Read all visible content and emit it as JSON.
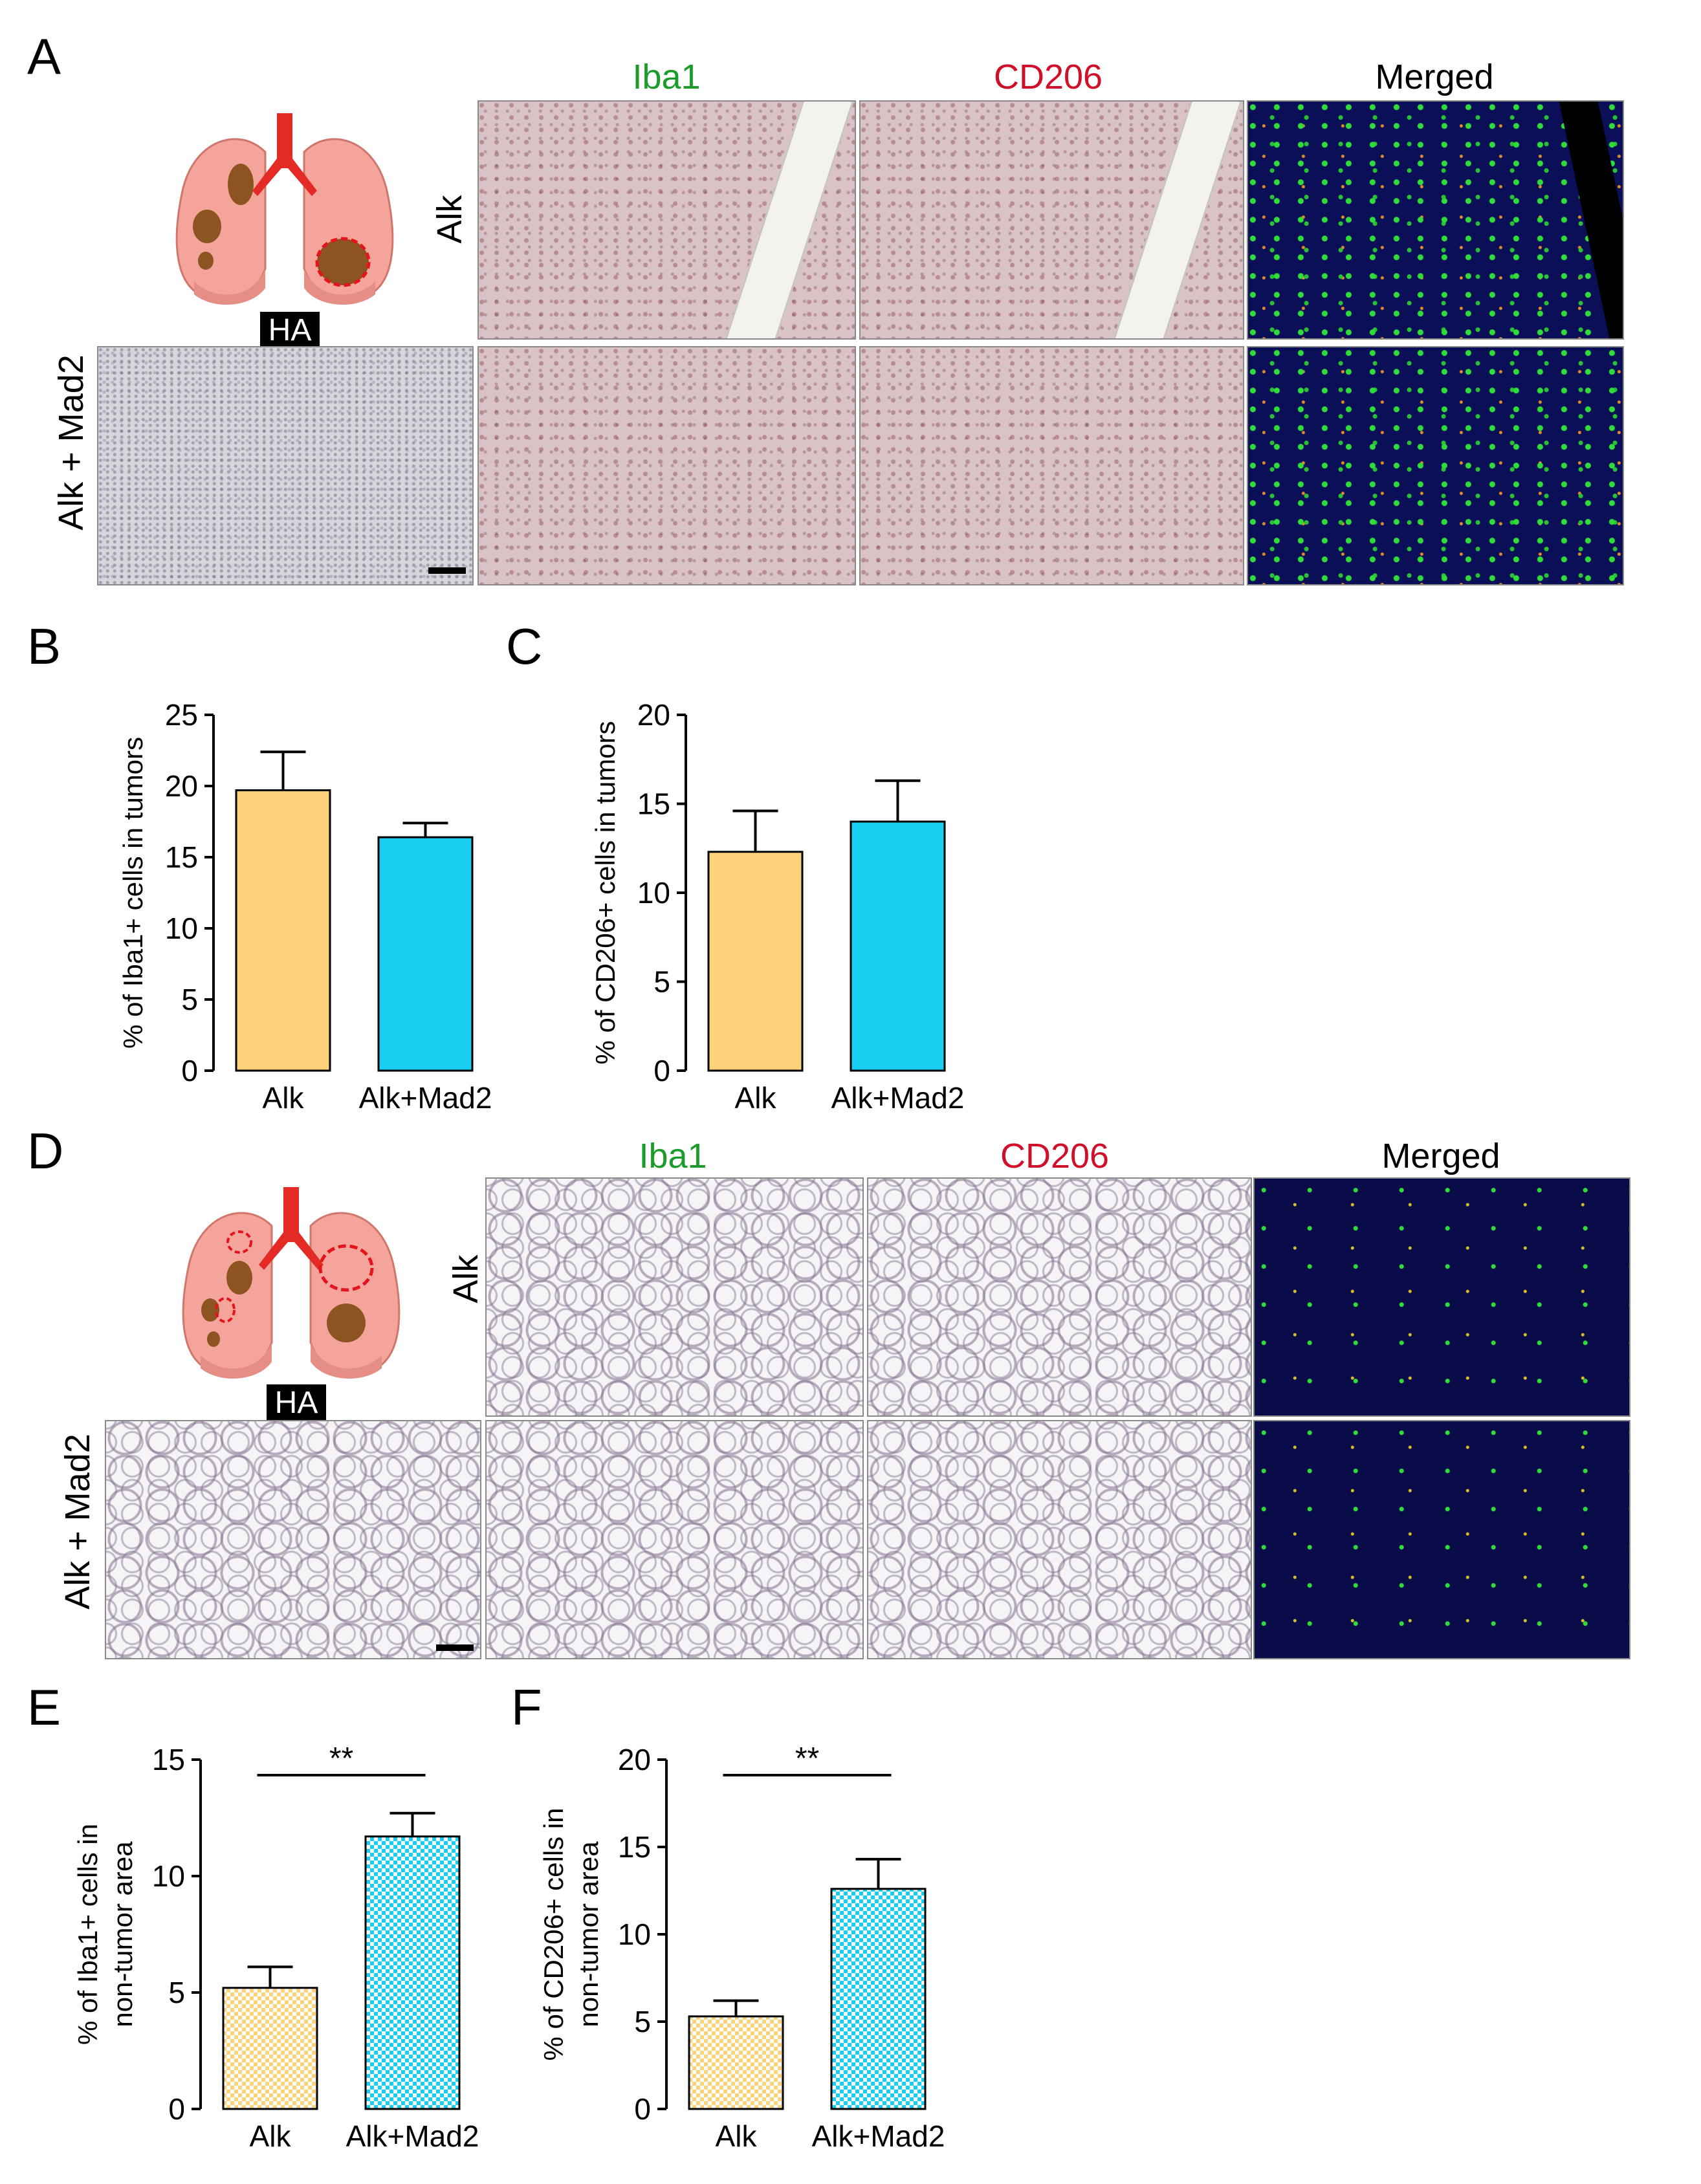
{
  "panels": {
    "A": {
      "letter": "A",
      "col_titles": [
        "Iba1",
        "CD206",
        "Merged"
      ],
      "col_colors": [
        "#1a9b2a",
        "#d0102a",
        "#000000"
      ],
      "row_labels": [
        "Alk",
        "Alk + Mad2"
      ],
      "ha_label": "HA"
    },
    "B": {
      "letter": "B"
    },
    "C": {
      "letter": "C"
    },
    "D": {
      "letter": "D",
      "col_titles": [
        "Iba1",
        "CD206",
        "Merged"
      ],
      "col_colors": [
        "#1a9b2a",
        "#d0102a",
        "#000000"
      ],
      "row_labels": [
        "Alk",
        "Alk + Mad2"
      ],
      "ha_label": "HA"
    },
    "E": {
      "letter": "E"
    },
    "F": {
      "letter": "F"
    }
  },
  "colors": {
    "alk": "#fdd27a",
    "alk_mad2": "#18cff2",
    "lung_fill": "#f4a49a",
    "lung_dark": "#e48e86",
    "trachea": "#e42a24",
    "tumor": "#8b5421"
  },
  "chart_data": [
    {
      "panel": "B",
      "type": "bar",
      "categories": [
        "Alk",
        "Alk+Mad2"
      ],
      "values": [
        19.7,
        16.4
      ],
      "errors": [
        2.7,
        1.0
      ],
      "ylabel": "% of Iba1+ cells in tumors",
      "ylim": [
        0,
        25
      ],
      "yticks": [
        0,
        5,
        10,
        15,
        20,
        25
      ],
      "pattern": "solid",
      "significance": ""
    },
    {
      "panel": "C",
      "type": "bar",
      "categories": [
        "Alk",
        "Alk+Mad2"
      ],
      "values": [
        12.3,
        14.0
      ],
      "errors": [
        2.3,
        2.3
      ],
      "ylabel": "% of CD206+ cells in tumors",
      "ylim": [
        0,
        20
      ],
      "yticks": [
        0,
        5,
        10,
        15,
        20
      ],
      "pattern": "solid",
      "significance": ""
    },
    {
      "panel": "E",
      "type": "bar",
      "categories": [
        "Alk",
        "Alk+Mad2"
      ],
      "values": [
        5.2,
        11.7
      ],
      "errors": [
        0.9,
        1.0
      ],
      "ylabel": "% of Iba1+ cells in non-tumor area",
      "ylabel_lines": [
        "% of Iba1+ cells in",
        "non-tumor area"
      ],
      "ylim": [
        0,
        15
      ],
      "yticks": [
        0,
        5,
        10,
        15
      ],
      "pattern": "checker",
      "significance": "**"
    },
    {
      "panel": "F",
      "type": "bar",
      "categories": [
        "Alk",
        "Alk+Mad2"
      ],
      "values": [
        5.3,
        12.6
      ],
      "errors": [
        0.9,
        1.7
      ],
      "ylabel": "% of CD206+ cells in non-tumor area",
      "ylabel_lines": [
        "% of CD206+ cells in",
        "non-tumor area"
      ],
      "ylim": [
        0,
        20
      ],
      "yticks": [
        0,
        5,
        10,
        15,
        20
      ],
      "pattern": "checker",
      "significance": "**"
    }
  ]
}
